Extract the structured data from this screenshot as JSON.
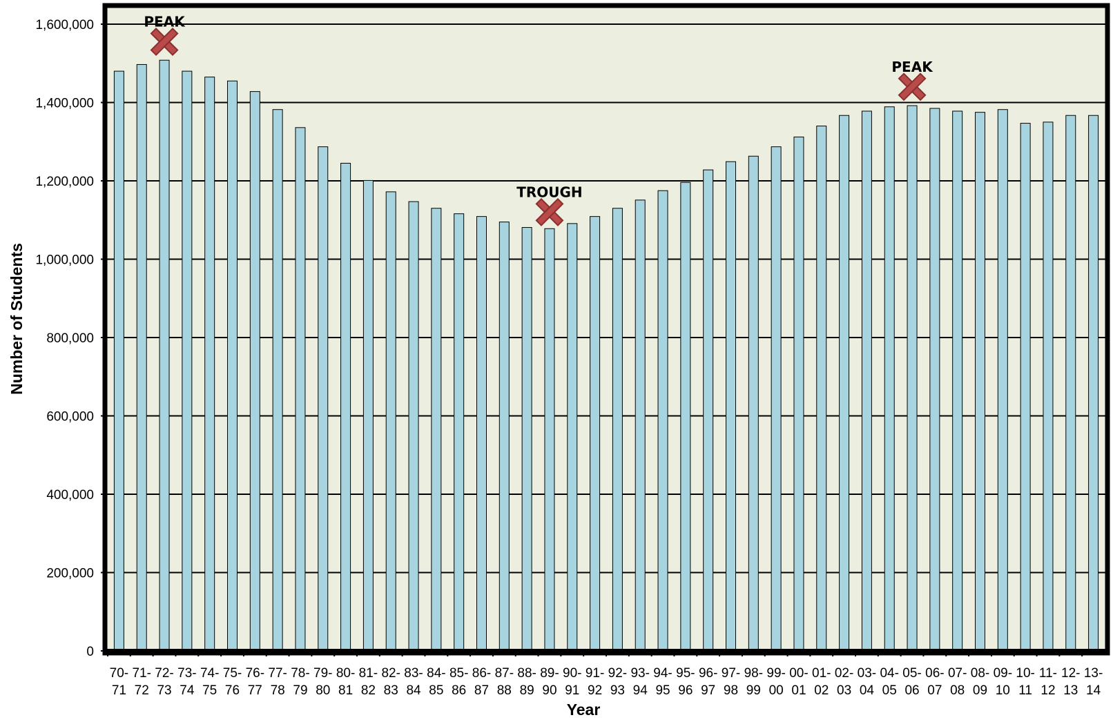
{
  "chart_data": {
    "type": "bar",
    "title": "",
    "xlabel": "Year",
    "ylabel": "Number of Students",
    "ylim": [
      0,
      1600000
    ],
    "yticks": [
      "0",
      "200,000",
      "400,000",
      "600,000",
      "800,000",
      "1,000,000",
      "1,200,000",
      "1,400,000",
      "1,600,000"
    ],
    "ytick_values": [
      0,
      200000,
      400000,
      600000,
      800000,
      1000000,
      1200000,
      1400000,
      1600000
    ],
    "grid": true,
    "legend": "none",
    "colors": {
      "plot_background": "#ecefdf",
      "bar_fill": "#a8d4df",
      "bar_stroke": "#000000",
      "frame": "#000000",
      "marker": "#b94a4a"
    },
    "categories": [
      [
        "70-",
        "71"
      ],
      [
        "71-",
        "72"
      ],
      [
        "72-",
        "73"
      ],
      [
        "73-",
        "74"
      ],
      [
        "74-",
        "75"
      ],
      [
        "75-",
        "76"
      ],
      [
        "76-",
        "77"
      ],
      [
        "77-",
        "78"
      ],
      [
        "78-",
        "79"
      ],
      [
        "79-",
        "80"
      ],
      [
        "80-",
        "81"
      ],
      [
        "81-",
        "82"
      ],
      [
        "82-",
        "83"
      ],
      [
        "83-",
        "84"
      ],
      [
        "84-",
        "85"
      ],
      [
        "85-",
        "86"
      ],
      [
        "86-",
        "87"
      ],
      [
        "87-",
        "88"
      ],
      [
        "88-",
        "89"
      ],
      [
        "89-",
        "90"
      ],
      [
        "90-",
        "91"
      ],
      [
        "91-",
        "92"
      ],
      [
        "92-",
        "93"
      ],
      [
        "93-",
        "94"
      ],
      [
        "94-",
        "95"
      ],
      [
        "95-",
        "96"
      ],
      [
        "96-",
        "97"
      ],
      [
        "97-",
        "98"
      ],
      [
        "98-",
        "99"
      ],
      [
        "99-",
        "00"
      ],
      [
        "00-",
        "01"
      ],
      [
        "01-",
        "02"
      ],
      [
        "02-",
        "03"
      ],
      [
        "03-",
        "04"
      ],
      [
        "04-",
        "05"
      ],
      [
        "05-",
        "06"
      ],
      [
        "06-",
        "07"
      ],
      [
        "07-",
        "08"
      ],
      [
        "08-",
        "09"
      ],
      [
        "09-",
        "10"
      ],
      [
        "10-",
        "11"
      ],
      [
        "11-",
        "12"
      ],
      [
        "12-",
        "13"
      ],
      [
        "13-",
        "14"
      ]
    ],
    "values": [
      1480000,
      1497000,
      1508000,
      1480000,
      1465000,
      1455000,
      1428000,
      1382000,
      1336000,
      1287000,
      1245000,
      1201000,
      1172000,
      1147000,
      1130000,
      1116000,
      1109000,
      1095000,
      1081000,
      1078000,
      1091000,
      1109000,
      1130000,
      1151000,
      1175000,
      1196000,
      1228000,
      1249000,
      1263000,
      1287000,
      1312000,
      1340000,
      1367000,
      1378000,
      1389000,
      1392000,
      1385000,
      1378000,
      1375000,
      1382000,
      1347000,
      1350000,
      1367000,
      1367000
    ],
    "annotations": [
      {
        "text": "PEAK",
        "category_index": 2,
        "marker_value": 1555000,
        "icon": "x-mark-icon"
      },
      {
        "text": "TROUGH",
        "category_index": 19,
        "marker_value": 1120000,
        "icon": "x-mark-icon"
      },
      {
        "text": "PEAK",
        "category_index": 35,
        "marker_value": 1440000,
        "icon": "x-mark-icon"
      }
    ]
  }
}
